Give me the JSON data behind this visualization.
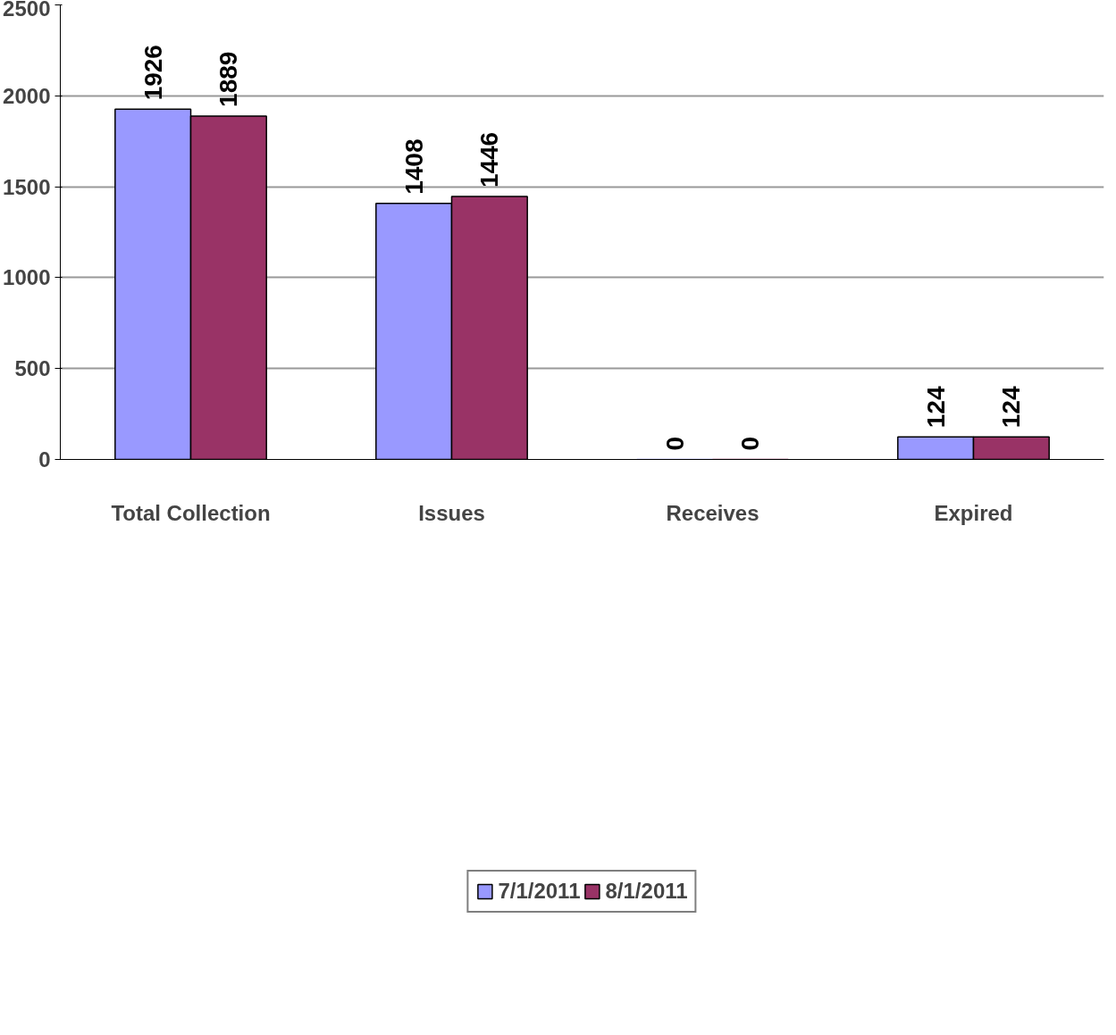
{
  "chart_data": {
    "type": "bar",
    "categories": [
      "Total Collection",
      "Issues",
      "Receives",
      "Expired"
    ],
    "series": [
      {
        "name": "7/1/2011",
        "color": "#9999ff",
        "values": [
          1926,
          1408,
          0,
          124
        ]
      },
      {
        "name": "8/1/2011",
        "color": "#993366",
        "values": [
          1889,
          1446,
          0,
          124
        ]
      }
    ],
    "ylim": [
      0,
      2500
    ],
    "yticks": [
      0,
      500,
      1000,
      1500,
      2000,
      2500
    ],
    "grid": "y",
    "legend": "bottom",
    "data_labels": true
  }
}
